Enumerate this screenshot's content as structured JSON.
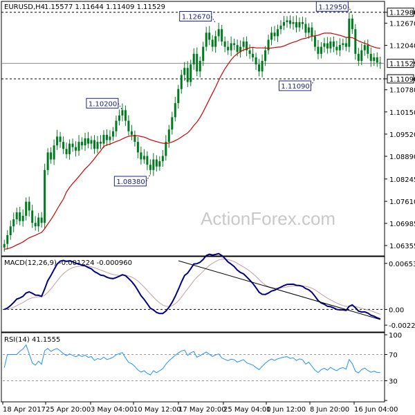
{
  "header": {
    "symbol": "EURUSD,H4",
    "ohlc": "1.15577 1.11644 1.11409 1.11529"
  },
  "watermark": "ActionForex.com",
  "colors": {
    "candle": "#007a1f",
    "sma": "#d00000",
    "macd": "#000080",
    "macd_signal": "#c0a0a0",
    "rsi": "#1e90ff",
    "annotation": "#1a237e"
  },
  "chart_data": [
    {
      "type": "candlestick",
      "panel": "price",
      "ylim": [
        1.061,
        1.1325
      ],
      "y_ticks": [
        "1.12980",
        "1.12670",
        "1.12040",
        "1.11529",
        "1.11090",
        "1.10780",
        "1.10150",
        "1.09520",
        "1.08890",
        "1.08245",
        "1.07610",
        "1.06985",
        "1.06355"
      ],
      "levels": [
        {
          "value": 1.1298,
          "label": "1.12980",
          "style": "dashed"
        },
        {
          "value": 1.1109,
          "label": "1.11090",
          "style": "dashed"
        },
        {
          "value": 1.11529,
          "label": "1.11529",
          "style": "solid"
        }
      ],
      "annotations": [
        {
          "label": "1.10200",
          "value": 1.102
        },
        {
          "label": "1.08380",
          "value": 1.0838
        },
        {
          "label": "1.12670",
          "value": 1.1267
        },
        {
          "label": "1.11090",
          "value": 1.1109
        },
        {
          "label": "1.12950",
          "value": 1.1295
        }
      ],
      "closes": [
        1.064,
        1.0665,
        1.069,
        1.071,
        1.073,
        1.0705,
        1.072,
        1.076,
        1.0735,
        1.07,
        1.069,
        1.0715,
        1.07,
        1.085,
        1.09,
        1.088,
        1.092,
        1.0945,
        1.093,
        1.091,
        1.0895,
        1.0925,
        1.0915,
        1.0905,
        1.093,
        1.092,
        1.094,
        1.0925,
        1.0935,
        1.091,
        1.093,
        1.0925,
        1.095,
        1.0935,
        1.0945,
        1.096,
        1.099,
        1.1005,
        1.102,
        1.099,
        1.096,
        1.095,
        1.093,
        1.09,
        1.088,
        1.089,
        1.0865,
        1.085,
        1.088,
        1.086,
        1.0875,
        1.089,
        1.093,
        1.0965,
        1.1,
        1.104,
        1.108,
        1.112,
        1.114,
        1.11,
        1.115,
        1.118,
        1.113,
        1.116,
        1.12,
        1.124,
        1.122,
        1.12,
        1.123,
        1.125,
        1.1215,
        1.12,
        1.119,
        1.121,
        1.1205,
        1.1185,
        1.12,
        1.1215,
        1.119,
        1.118,
        1.117,
        1.115,
        1.113,
        1.116,
        1.119,
        1.122,
        1.124,
        1.123,
        1.125,
        1.126,
        1.127,
        1.1275,
        1.1265,
        1.127,
        1.1255,
        1.127,
        1.1265,
        1.124,
        1.1255,
        1.123,
        1.12,
        1.118,
        1.12,
        1.121,
        1.1195,
        1.1215,
        1.12,
        1.119,
        1.1205,
        1.121,
        1.12,
        1.128,
        1.125,
        1.118,
        1.116,
        1.119,
        1.1205,
        1.118,
        1.116,
        1.117,
        1.1155,
        1.1153
      ],
      "sma_label": "SMA"
    },
    {
      "type": "line",
      "panel": "macd",
      "title": "MACD(12,26,9) -0.001224 -0.000960",
      "ylim": [
        -0.003,
        0.0072
      ],
      "y_ticks": [
        "0.006534",
        "0.00",
        "-0.002226"
      ],
      "zero_line": 0.0
    },
    {
      "type": "line",
      "panel": "rsi",
      "title": "RSI(14) 41.1555",
      "ylim": [
        0,
        100
      ],
      "y_ticks": [
        "100",
        "70",
        "30",
        "0"
      ],
      "levels": [
        70,
        30
      ]
    }
  ],
  "x_axis": {
    "labels": [
      "18 Apr 2017",
      "25 Apr 20:00",
      "3 May 04:00",
      "10 May 12:00",
      "17 May 20:00",
      "25 May 04:00",
      "1 Jun 12:00",
      "8 Jun 20:00",
      "16 Jun 04:00"
    ]
  }
}
